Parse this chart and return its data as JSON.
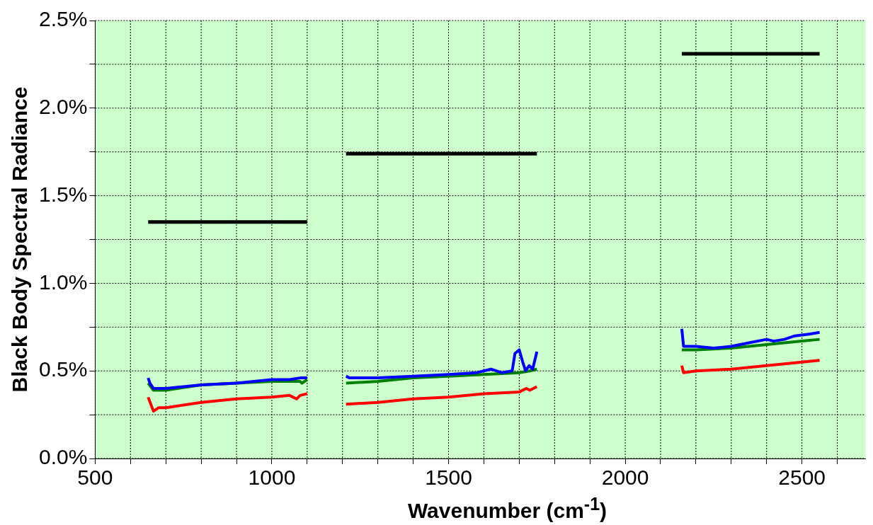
{
  "chart_data": {
    "type": "line",
    "xlabel": "Wavenumber (cm$^{-1}$)",
    "ylabel": "Black Body Spectral Radiance",
    "xlim": [
      500,
      2680
    ],
    "ylim": [
      0,
      2.5
    ],
    "xticks": [
      500,
      {
        "value": 600,
        "label": null
      },
      {
        "value": 700,
        "label": null
      },
      {
        "value": 800,
        "label": null
      },
      {
        "value": 900,
        "label": null
      },
      1000,
      {
        "value": 1100,
        "label": null
      },
      {
        "value": 1200,
        "label": null
      },
      {
        "value": 1300,
        "label": null
      },
      {
        "value": 1400,
        "label": null
      },
      1500,
      {
        "value": 1600,
        "label": null
      },
      {
        "value": 1700,
        "label": null
      },
      {
        "value": 1800,
        "label": null
      },
      {
        "value": 1900,
        "label": null
      },
      2000,
      {
        "value": 2100,
        "label": null
      },
      {
        "value": 2200,
        "label": null
      },
      {
        "value": 2300,
        "label": null
      },
      {
        "value": 2400,
        "label": null
      },
      2500,
      {
        "value": 2600,
        "label": null
      }
    ],
    "yticks": [
      {
        "value": 0,
        "label": "0.0%"
      },
      {
        "value": 0.25,
        "label": null
      },
      {
        "value": 0.5,
        "label": "0.5%"
      },
      {
        "value": 0.75,
        "label": null
      },
      {
        "value": 1,
        "label": "1.0%"
      },
      {
        "value": 1.25,
        "label": null
      },
      {
        "value": 1.5,
        "label": "1.5%"
      },
      {
        "value": 1.75,
        "label": null
      },
      {
        "value": 2,
        "label": "2.0%"
      },
      {
        "value": 2.25,
        "label": null
      },
      {
        "value": 2.5,
        "label": "2.5%"
      }
    ],
    "grid": true,
    "legend": false,
    "marker": "none",
    "line_style": "solid",
    "series": [
      {
        "color": "#000000",
        "x": [
          650,
          1100,
          1150,
          1210,
          1750,
          1950,
          2160,
          2550
        ],
        "values": [
          1.35,
          1.35,
          null,
          1.74,
          1.74,
          null,
          2.31,
          2.31
        ]
      },
      {
        "color": "#0000ff",
        "x": [
          650,
          655,
          665,
          700,
          800,
          900,
          950,
          1000,
          1050,
          1080,
          1100,
          1150,
          1210,
          1220,
          1300,
          1400,
          1500,
          1580,
          1620,
          1650,
          1680,
          1688,
          1700,
          1710,
          1718,
          1728,
          1738,
          1750,
          1950,
          2160,
          2165,
          2200,
          2250,
          2300,
          2350,
          2400,
          2420,
          2450,
          2480,
          2520,
          2550
        ],
        "values": [
          0.46,
          0.43,
          0.4,
          0.4,
          0.42,
          0.43,
          0.44,
          0.45,
          0.45,
          0.46,
          0.46,
          null,
          0.47,
          0.46,
          0.46,
          0.47,
          0.48,
          0.49,
          0.51,
          0.49,
          0.5,
          0.6,
          0.62,
          0.55,
          0.5,
          0.53,
          0.51,
          0.61,
          null,
          0.74,
          0.64,
          0.64,
          0.63,
          0.64,
          0.66,
          0.68,
          0.67,
          0.68,
          0.7,
          0.71,
          0.72
        ]
      },
      {
        "color": "#008000",
        "x": [
          650,
          665,
          700,
          800,
          900,
          1000,
          1080,
          1085,
          1100,
          1150,
          1210,
          1300,
          1400,
          1500,
          1600,
          1700,
          1730,
          1750,
          1950,
          2160,
          2200,
          2300,
          2400,
          2500,
          2550
        ],
        "values": [
          0.43,
          0.39,
          0.39,
          0.42,
          0.43,
          0.44,
          0.44,
          0.43,
          0.45,
          null,
          0.43,
          0.44,
          0.46,
          0.47,
          0.48,
          0.49,
          0.5,
          0.51,
          null,
          0.62,
          0.62,
          0.63,
          0.65,
          0.67,
          0.68
        ]
      },
      {
        "color": "#ff0000",
        "x": [
          650,
          665,
          680,
          700,
          800,
          900,
          1000,
          1050,
          1070,
          1080,
          1100,
          1150,
          1210,
          1300,
          1400,
          1500,
          1600,
          1700,
          1720,
          1730,
          1750,
          1950,
          2160,
          2165,
          2200,
          2300,
          2400,
          2500,
          2550
        ],
        "values": [
          0.35,
          0.27,
          0.29,
          0.29,
          0.32,
          0.34,
          0.35,
          0.36,
          0.34,
          0.36,
          0.37,
          null,
          0.31,
          0.32,
          0.34,
          0.35,
          0.37,
          0.38,
          0.4,
          0.39,
          0.41,
          null,
          0.53,
          0.49,
          0.5,
          0.51,
          0.53,
          0.55,
          0.56
        ]
      }
    ]
  }
}
